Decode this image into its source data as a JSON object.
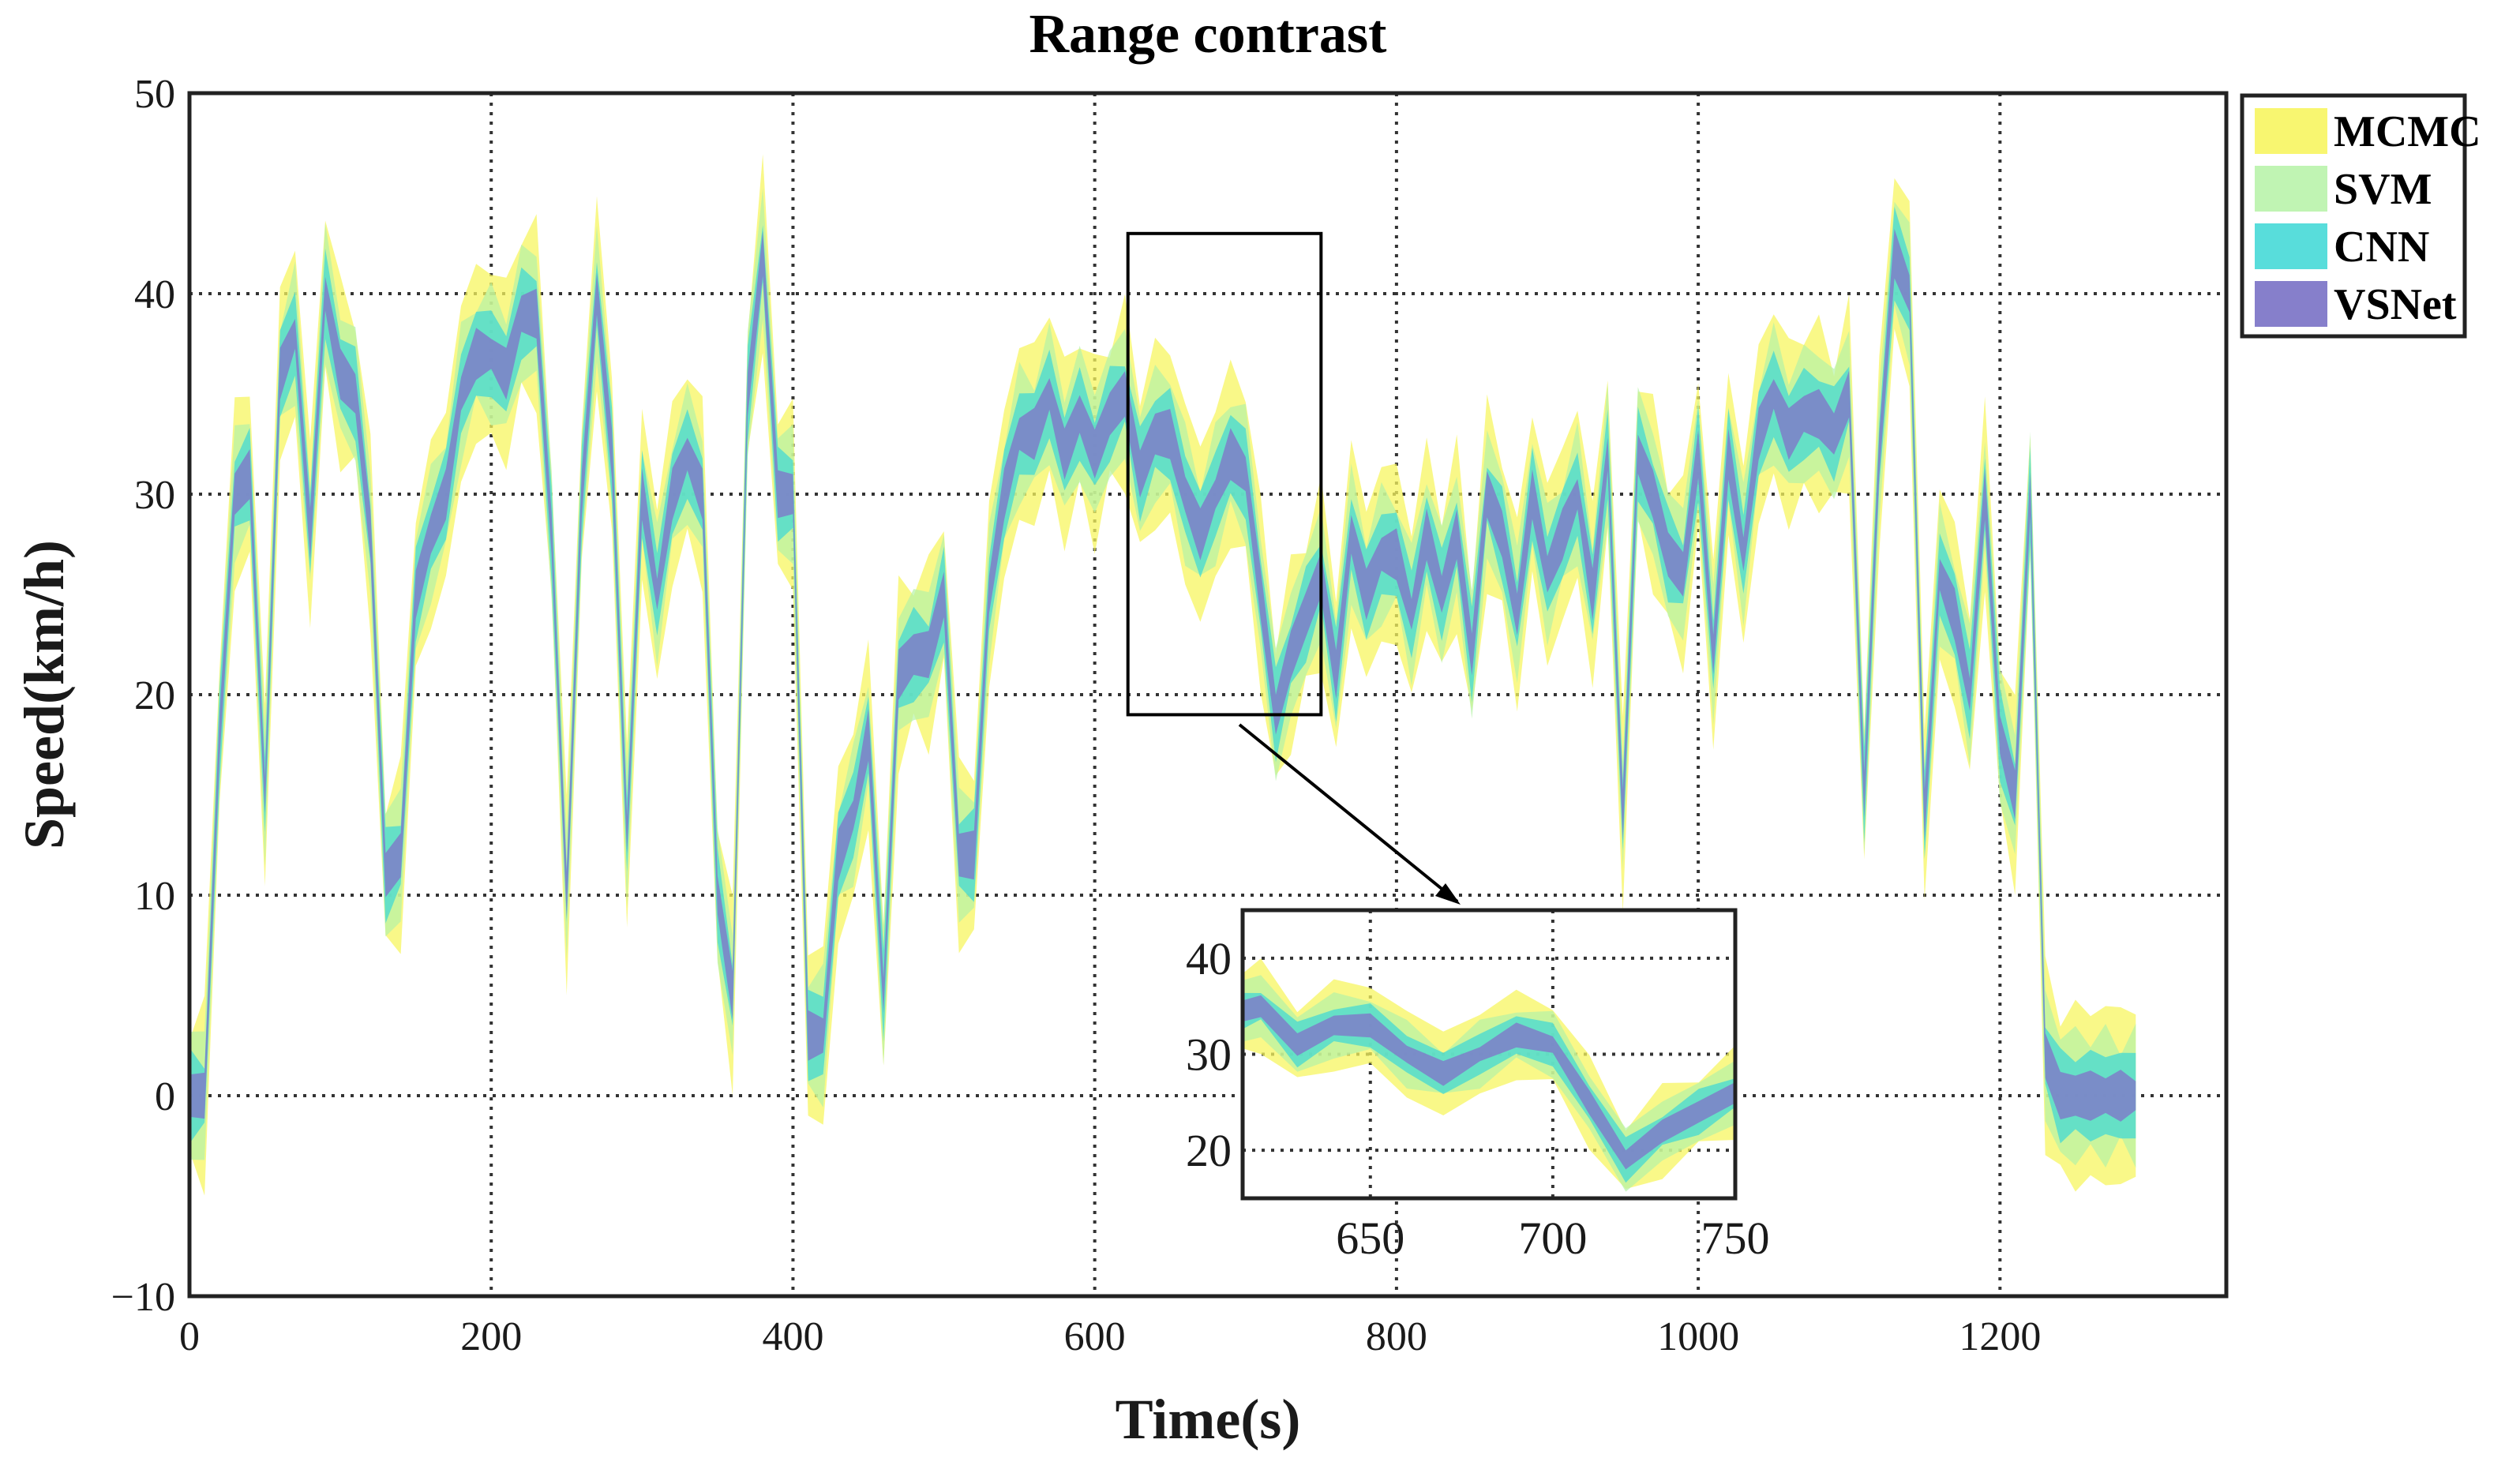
{
  "chart_data": {
    "type": "area",
    "title": "Range contrast",
    "xlabel": "Time(s)",
    "ylabel": "Speed(km/h)",
    "xlim": [
      0,
      1350
    ],
    "ylim": [
      -10,
      50
    ],
    "grid": true,
    "legend_position": "outside-top-right",
    "x_ticks": [
      0,
      200,
      400,
      600,
      800,
      1000,
      1200
    ],
    "y_ticks": [
      -10,
      0,
      10,
      20,
      30,
      40,
      50
    ],
    "x_tick_labels": [
      "0",
      "200",
      "400",
      "600",
      "800",
      "1000",
      "1200"
    ],
    "y_tick_labels": [
      "−10",
      "0",
      "10",
      "20",
      "30",
      "40",
      "50"
    ],
    "center_series": {
      "x": [
        0,
        10,
        20,
        30,
        40,
        50,
        60,
        70,
        80,
        90,
        100,
        110,
        120,
        130,
        140,
        150,
        160,
        170,
        180,
        190,
        200,
        210,
        220,
        230,
        240,
        250,
        260,
        270,
        280,
        290,
        300,
        310,
        320,
        330,
        340,
        350,
        360,
        370,
        380,
        390,
        400,
        410,
        420,
        430,
        440,
        450,
        460,
        470,
        480,
        490,
        500,
        510,
        520,
        530,
        540,
        550,
        560,
        570,
        580,
        590,
        600,
        610,
        620,
        630,
        640,
        650,
        660,
        670,
        680,
        690,
        700,
        710,
        720,
        730,
        740,
        750,
        760,
        770,
        780,
        790,
        800,
        810,
        820,
        830,
        840,
        850,
        860,
        870,
        880,
        890,
        900,
        910,
        920,
        930,
        940,
        950,
        960,
        970,
        980,
        990,
        1000,
        1010,
        1020,
        1030,
        1040,
        1050,
        1060,
        1070,
        1080,
        1090,
        1100,
        1110,
        1120,
        1130,
        1140,
        1150,
        1160,
        1170,
        1180,
        1190,
        1200,
        1210,
        1220,
        1230,
        1240,
        1250,
        1260,
        1270,
        1280,
        1290
      ],
      "y": [
        0,
        0,
        18,
        30,
        31,
        15,
        36,
        38,
        28,
        40,
        36,
        35,
        28,
        11,
        12,
        25,
        28,
        30,
        35,
        37,
        37,
        36,
        39,
        39,
        28,
        10,
        30,
        40,
        32,
        13,
        30,
        25,
        30,
        32,
        30,
        10,
        5,
        35,
        42,
        30,
        30,
        3,
        3,
        12,
        14,
        18,
        5,
        21,
        22,
        22,
        25,
        12,
        12,
        25,
        30,
        33,
        33,
        35,
        32,
        34,
        32,
        34,
        35,
        31,
        33,
        33,
        30,
        28,
        30,
        32,
        31,
        25,
        19,
        22,
        24,
        26,
        21,
        28,
        25,
        27,
        27,
        24,
        28,
        25,
        28,
        22,
        30,
        28,
        24,
        30,
        26,
        28,
        30,
        25,
        32,
        14,
        32,
        30,
        27,
        26,
        32,
        22,
        32,
        27,
        33,
        35,
        33,
        34,
        34,
        33,
        35,
        15,
        32,
        42,
        40,
        14,
        26,
        24,
        20,
        30,
        18,
        15,
        30,
        2,
        0,
        0,
        0,
        0,
        0,
        0
      ]
    },
    "bands": [
      {
        "name": "MCMC",
        "color": "#f7f560",
        "opacity": 0.75,
        "half_width": 5.0
      },
      {
        "name": "SVM",
        "color": "#b5f2a6",
        "opacity": 0.7,
        "half_width": 3.6
      },
      {
        "name": "CNN",
        "color": "#3fd8d6",
        "opacity": 0.72,
        "half_width": 2.4
      },
      {
        "name": "VSNet",
        "color": "#8078c8",
        "opacity": 0.8,
        "half_width": 1.3
      }
    ],
    "inset": {
      "xlim": [
        615,
        750
      ],
      "ylim": [
        15,
        45
      ],
      "x_ticks": [
        650,
        700,
        750
      ],
      "y_ticks": [
        20,
        30,
        40
      ],
      "x_tick_labels": [
        "650",
        "700",
        "750"
      ],
      "y_tick_labels": [
        "20",
        "30",
        "40"
      ],
      "source_box": {
        "x": [
          622,
          750
        ],
        "y": [
          19,
          43
        ]
      }
    }
  }
}
